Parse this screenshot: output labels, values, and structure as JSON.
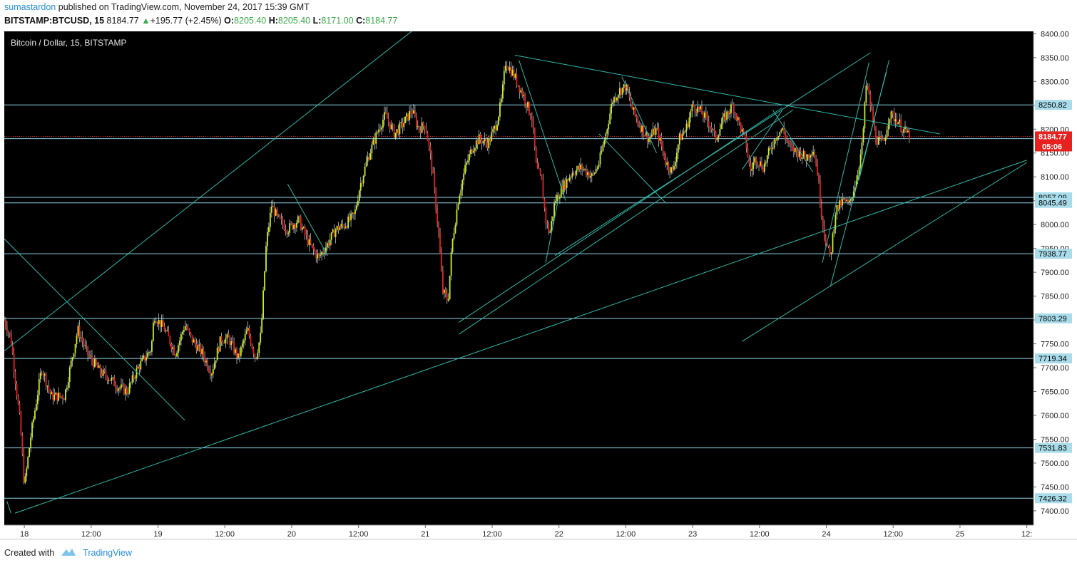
{
  "header": {
    "author": "sumastardon",
    "published_text": "published on TradingView.com, November 24, 2017 15:39 GMT"
  },
  "ohlc": {
    "symbol": "BITSTAMP:BTCUSD, 15",
    "last": "8184.77",
    "change": "+195.77 (+2.45%)",
    "o_label": "O:",
    "o": "8205.40",
    "h_label": "H:",
    "h": "8205.40",
    "l_label": "L:",
    "l": "8171.00",
    "c_label": "C:",
    "c": "8184.77"
  },
  "footer": {
    "created_with": "Created with",
    "brand": "TradingView"
  },
  "colors": {
    "background": "#000000",
    "up": "#c8f01e",
    "down": "#e8201e",
    "trend": "#2fb8a8",
    "hline": "#8fd4e8",
    "last_price": "#e8201e",
    "axis_text": "#222222"
  },
  "chart_data": {
    "type": "candlestick",
    "title": "Bitcoin / Dollar, 15, BITSTAMP",
    "ylim": [
      7370,
      8405
    ],
    "y_ticks": [
      7400,
      7450,
      7500,
      7550,
      7600,
      7650,
      7700,
      7750,
      7800,
      7850,
      7900,
      7950,
      8000,
      8050,
      8100,
      8150,
      8200,
      8250,
      8300,
      8350,
      8400
    ],
    "y_tick_labels": [
      "7400.00",
      "7450.00",
      "7500.00",
      "7550.00",
      "7600.00",
      "7650.00",
      "7700.00",
      "7750.00",
      "7800.00",
      "7850.00",
      "7900.00",
      "7950.00",
      "8000.00",
      "8050.00",
      "8100.00",
      "8150.00",
      "8200.00",
      "8250.00",
      "8300.00",
      "8350.00",
      "8400.00"
    ],
    "x_ticks": [
      {
        "day": 0.15,
        "label": "18"
      },
      {
        "day": 0.65,
        "label": "12:00"
      },
      {
        "day": 1.15,
        "label": "19"
      },
      {
        "day": 1.65,
        "label": "12:00"
      },
      {
        "day": 2.15,
        "label": "20"
      },
      {
        "day": 2.65,
        "label": "12:00"
      },
      {
        "day": 3.15,
        "label": "21"
      },
      {
        "day": 3.65,
        "label": "12:00"
      },
      {
        "day": 4.15,
        "label": "22"
      },
      {
        "day": 4.65,
        "label": "12:00"
      },
      {
        "day": 5.15,
        "label": "23"
      },
      {
        "day": 5.65,
        "label": "12:00"
      },
      {
        "day": 6.15,
        "label": "24"
      },
      {
        "day": 6.65,
        "label": "12:00"
      },
      {
        "day": 7.15,
        "label": "25"
      },
      {
        "day": 7.65,
        "label": "12:"
      }
    ],
    "x_range_days": [
      0.0,
      7.7
    ],
    "last_candle_day": 6.78,
    "price_path": [
      [
        0.0,
        7800
      ],
      [
        0.05,
        7760
      ],
      [
        0.12,
        7580
      ],
      [
        0.15,
        7450
      ],
      [
        0.2,
        7560
      ],
      [
        0.28,
        7700
      ],
      [
        0.35,
        7640
      ],
      [
        0.45,
        7640
      ],
      [
        0.55,
        7780
      ],
      [
        0.62,
        7730
      ],
      [
        0.72,
        7690
      ],
      [
        0.78,
        7680
      ],
      [
        0.85,
        7660
      ],
      [
        0.92,
        7650
      ],
      [
        1.0,
        7700
      ],
      [
        1.1,
        7740
      ],
      [
        1.12,
        7810
      ],
      [
        1.2,
        7780
      ],
      [
        1.28,
        7730
      ],
      [
        1.35,
        7790
      ],
      [
        1.4,
        7760
      ],
      [
        1.48,
        7730
      ],
      [
        1.55,
        7690
      ],
      [
        1.62,
        7760
      ],
      [
        1.68,
        7760
      ],
      [
        1.75,
        7720
      ],
      [
        1.82,
        7780
      ],
      [
        1.88,
        7720
      ],
      [
        1.92,
        7770
      ],
      [
        1.96,
        7960
      ],
      [
        2.0,
        8040
      ],
      [
        2.05,
        8010
      ],
      [
        2.12,
        7990
      ],
      [
        2.2,
        8010
      ],
      [
        2.28,
        7960
      ],
      [
        2.35,
        7930
      ],
      [
        2.42,
        7960
      ],
      [
        2.48,
        7990
      ],
      [
        2.55,
        8000
      ],
      [
        2.62,
        8020
      ],
      [
        2.66,
        8080
      ],
      [
        2.72,
        8140
      ],
      [
        2.8,
        8200
      ],
      [
        2.85,
        8230
      ],
      [
        2.92,
        8190
      ],
      [
        2.98,
        8210
      ],
      [
        3.05,
        8240
      ],
      [
        3.1,
        8200
      ],
      [
        3.15,
        8210
      ],
      [
        3.2,
        8120
      ],
      [
        3.25,
        7980
      ],
      [
        3.28,
        7860
      ],
      [
        3.32,
        7840
      ],
      [
        3.35,
        7960
      ],
      [
        3.4,
        8060
      ],
      [
        3.45,
        8120
      ],
      [
        3.5,
        8160
      ],
      [
        3.55,
        8180
      ],
      [
        3.62,
        8170
      ],
      [
        3.68,
        8210
      ],
      [
        3.72,
        8260
      ],
      [
        3.75,
        8340
      ],
      [
        3.8,
        8320
      ],
      [
        3.85,
        8290
      ],
      [
        3.9,
        8260
      ],
      [
        3.95,
        8220
      ],
      [
        3.98,
        8120
      ],
      [
        4.02,
        8090
      ],
      [
        4.05,
        8010
      ],
      [
        4.08,
        7980
      ],
      [
        4.12,
        8050
      ],
      [
        4.18,
        8080
      ],
      [
        4.25,
        8110
      ],
      [
        4.32,
        8120
      ],
      [
        4.4,
        8100
      ],
      [
        4.45,
        8130
      ],
      [
        4.5,
        8190
      ],
      [
        4.55,
        8260
      ],
      [
        4.6,
        8280
      ],
      [
        4.65,
        8290
      ],
      [
        4.7,
        8240
      ],
      [
        4.75,
        8210
      ],
      [
        4.82,
        8180
      ],
      [
        4.88,
        8200
      ],
      [
        4.95,
        8130
      ],
      [
        5.0,
        8110
      ],
      [
        5.05,
        8180
      ],
      [
        5.1,
        8200
      ],
      [
        5.15,
        8250
      ],
      [
        5.2,
        8240
      ],
      [
        5.28,
        8210
      ],
      [
        5.32,
        8180
      ],
      [
        5.38,
        8220
      ],
      [
        5.45,
        8250
      ],
      [
        5.5,
        8210
      ],
      [
        5.55,
        8170
      ],
      [
        5.58,
        8110
      ],
      [
        5.62,
        8140
      ],
      [
        5.68,
        8120
      ],
      [
        5.72,
        8150
      ],
      [
        5.78,
        8190
      ],
      [
        5.82,
        8200
      ],
      [
        5.88,
        8160
      ],
      [
        5.95,
        8150
      ],
      [
        6.0,
        8140
      ],
      [
        6.05,
        8160
      ],
      [
        6.08,
        8120
      ],
      [
        6.12,
        8010
      ],
      [
        6.15,
        7960
      ],
      [
        6.18,
        7930
      ],
      [
        6.22,
        8030
      ],
      [
        6.28,
        8050
      ],
      [
        6.32,
        8040
      ],
      [
        6.38,
        8100
      ],
      [
        6.42,
        8170
      ],
      [
        6.45,
        8300
      ],
      [
        6.48,
        8250
      ],
      [
        6.52,
        8180
      ],
      [
        6.58,
        8170
      ],
      [
        6.62,
        8230
      ],
      [
        6.68,
        8220
      ],
      [
        6.72,
        8200
      ],
      [
        6.78,
        8185
      ]
    ],
    "horizontal_levels": [
      {
        "price": 8250.82,
        "label": "8250.82"
      },
      {
        "price": 8180.0,
        "label": ""
      },
      {
        "price": 8057.09,
        "label": "8057.09"
      },
      {
        "price": 8045.49,
        "label": "8045.49"
      },
      {
        "price": 7938.77,
        "label": "7938.77"
      },
      {
        "price": 7803.29,
        "label": "7803.29"
      },
      {
        "price": 7719.34,
        "label": "7719.34"
      },
      {
        "price": 7531.83,
        "label": "7531.83"
      },
      {
        "price": 7426.32,
        "label": "7426.32"
      }
    ],
    "last_price": {
      "price": 8184.77,
      "label": "8184.77",
      "countdown": "05:06"
    },
    "trendlines": [
      [
        [
          0.0,
          7735
        ],
        [
          3.07,
          8410
        ]
      ],
      [
        [
          0.08,
          7395
        ],
        [
          7.65,
          8135
        ]
      ],
      [
        [
          0.0,
          7970
        ],
        [
          1.35,
          7590
        ]
      ],
      [
        [
          3.4,
          7795
        ],
        [
          5.82,
          8245
        ]
      ],
      [
        [
          3.4,
          7770
        ],
        [
          5.9,
          8240
        ]
      ],
      [
        [
          4.12,
          7935
        ],
        [
          6.48,
          8360
        ]
      ],
      [
        [
          3.82,
          8355
        ],
        [
          7.0,
          8190
        ]
      ],
      [
        [
          0.02,
          7420
        ],
        [
          0.05,
          7395
        ]
      ],
      [
        [
          2.12,
          8085
        ],
        [
          2.42,
          7935
        ]
      ],
      [
        [
          3.85,
          8345
        ],
        [
          4.2,
          8050
        ]
      ],
      [
        [
          4.62,
          8310
        ],
        [
          4.88,
          8150
        ]
      ],
      [
        [
          4.45,
          8190
        ],
        [
          4.95,
          8045
        ]
      ],
      [
        [
          5.52,
          8115
        ],
        [
          5.82,
          8240
        ]
      ],
      [
        [
          5.75,
          8240
        ],
        [
          6.05,
          8110
        ]
      ],
      [
        [
          4.05,
          7920
        ],
        [
          4.15,
          8060
        ]
      ],
      [
        [
          6.12,
          7920
        ],
        [
          6.47,
          8340
        ]
      ],
      [
        [
          6.18,
          7870
        ],
        [
          6.6,
          8320
        ]
      ],
      [
        [
          6.4,
          8100
        ],
        [
          6.62,
          8345
        ]
      ],
      [
        [
          5.52,
          7755
        ],
        [
          7.65,
          8130
        ]
      ]
    ]
  }
}
